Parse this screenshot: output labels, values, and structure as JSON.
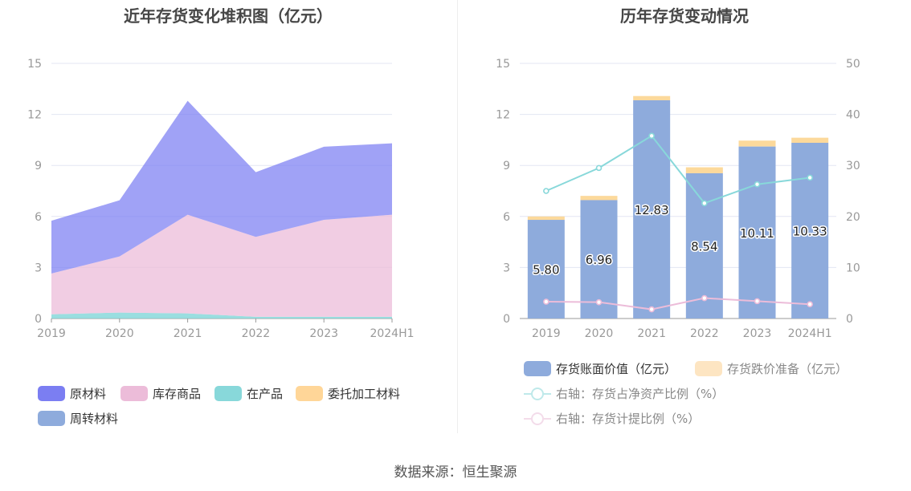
{
  "left_title": "近年存货变化堆积图（亿元）",
  "right_title": "历年存货变动情况",
  "source": "数据来源：恒生聚源",
  "chart_data": [
    {
      "type": "area",
      "title": "近年存货变化堆积图（亿元）",
      "stacked": true,
      "categories": [
        "2019",
        "2020",
        "2021",
        "2022",
        "2023",
        "2024H1"
      ],
      "ylim": [
        0,
        15
      ],
      "yticks": [
        "0",
        "3",
        "6",
        "9",
        "12",
        "15"
      ],
      "grid": true,
      "legend_position": "bottom-left",
      "series": [
        {
          "name": "原材料",
          "color": "#7b7ef2",
          "values": [
            3.1,
            3.3,
            6.7,
            3.8,
            4.3,
            4.2
          ]
        },
        {
          "name": "库存商品",
          "color": "#ecbcd9",
          "values": [
            2.4,
            3.3,
            5.8,
            4.7,
            5.7,
            6.0
          ]
        },
        {
          "name": "在产品",
          "color": "#88d8da",
          "values": [
            0.25,
            0.35,
            0.3,
            0.1,
            0.1,
            0.1
          ]
        },
        {
          "name": "委托加工材料",
          "color": "#ffd698",
          "values": [
            0.0,
            0.0,
            0.0,
            0.0,
            0.0,
            0.0
          ]
        },
        {
          "name": "周转材料",
          "color": "#8eabdc",
          "values": [
            0.0,
            0.0,
            0.0,
            0.0,
            0.0,
            0.0
          ]
        }
      ]
    },
    {
      "type": "bar",
      "title": "历年存货变动情况",
      "stacked": true,
      "categories": [
        "2019",
        "2020",
        "2021",
        "2022",
        "2023",
        "2024H1"
      ],
      "ylim": [
        0,
        15
      ],
      "yticks": [
        "0",
        "3",
        "6",
        "9",
        "12",
        "15"
      ],
      "y2lim": [
        0,
        50
      ],
      "y2ticks": [
        "0",
        "10",
        "20",
        "30",
        "40",
        "50"
      ],
      "grid": true,
      "legend_position": "bottom",
      "series": [
        {
          "name": "存货账面价值（亿元）",
          "color": "#8eabdc",
          "values": [
            5.8,
            6.96,
            12.83,
            8.54,
            10.11,
            10.33
          ],
          "labels": [
            "5.80",
            "6.96",
            "12.83",
            "8.54",
            "10.11",
            "10.33"
          ]
        },
        {
          "name": "存货跌价准备（亿元）",
          "color": "#fde5c2",
          "bar_color": "#fcd99b",
          "values": [
            0.2,
            0.25,
            0.25,
            0.35,
            0.35,
            0.3
          ]
        }
      ],
      "line_series": [
        {
          "name": "右轴：存货占净资产比例（%）",
          "color": "#88d8da",
          "values": [
            25.0,
            29.5,
            35.8,
            22.6,
            26.3,
            27.6
          ]
        },
        {
          "name": "右轴：存货计提比例（%）",
          "color": "#ecbcd9",
          "values": [
            3.3,
            3.2,
            1.8,
            4.0,
            3.4,
            2.8
          ]
        }
      ]
    }
  ]
}
